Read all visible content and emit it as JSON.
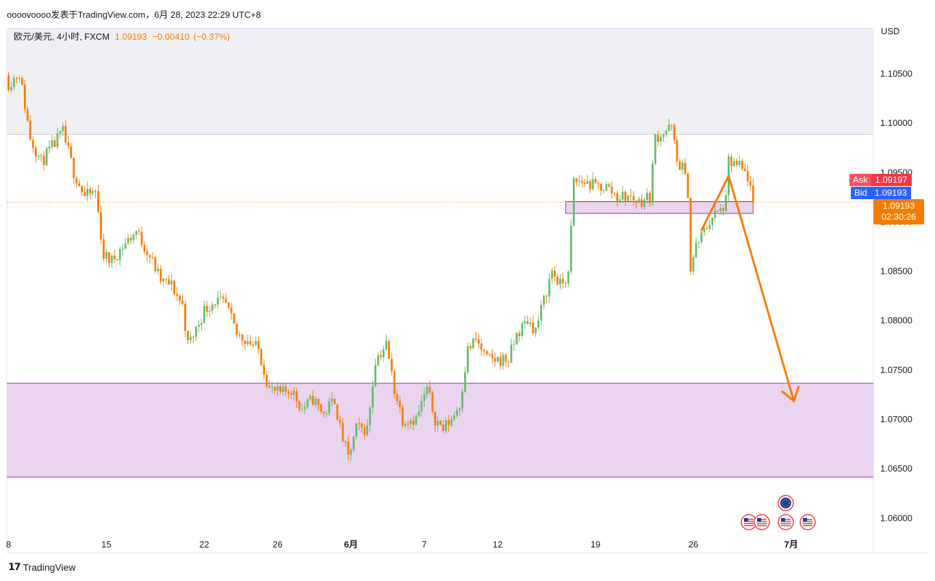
{
  "header": {
    "publisher_line": "oooovoooo发表于TradingView.com，6月 28, 2023 22:29 UTC+8"
  },
  "legend": {
    "symbol": "欧元/美元, 4小时, FXCM",
    "last": "1.09193",
    "change": "−0.00410",
    "change_pct": "(−0.37%)"
  },
  "price_panel": {
    "currency": "USD",
    "ask_label": "Ask",
    "ask_value": "1.09197",
    "bid_label": "Bid",
    "bid_value": "1.09193",
    "last_value": "1.09193",
    "countdown": "02:30:26"
  },
  "footer": {
    "brand": "TradingView"
  },
  "colors": {
    "up": "#66bb6a",
    "down": "#f57c00",
    "arrow": "#f57c00",
    "zone_fill": "#ead4f0",
    "zone_border": "#9c27b0",
    "top_shade": "#f0f0f4",
    "ask": "#f23645",
    "bid": "#2962ff"
  },
  "chart_data": {
    "type": "candlestick",
    "symbol": "EURUSD",
    "timeframe": "4h",
    "ylim": [
      1.0585,
      1.1095
    ],
    "y_ticks": [
      "1.10500",
      "1.10000",
      "1.09500",
      "1.09000",
      "1.08500",
      "1.08000",
      "1.07500",
      "1.07000",
      "1.06500",
      "1.06000"
    ],
    "y_tick_values": [
      1.105,
      1.1,
      1.095,
      1.09,
      1.085,
      1.08,
      1.075,
      1.07,
      1.065,
      1.06
    ],
    "x_ticks": [
      {
        "label": "8",
        "bold": false
      },
      {
        "label": "15",
        "bold": false
      },
      {
        "label": "22",
        "bold": false
      },
      {
        "label": "26",
        "bold": false
      },
      {
        "label": "6月",
        "bold": true
      },
      {
        "label": "7",
        "bold": false
      },
      {
        "label": "12",
        "bold": false
      },
      {
        "label": "19",
        "bold": false
      },
      {
        "label": "26",
        "bold": false
      },
      {
        "label": "7月",
        "bold": true
      }
    ],
    "x_tick_index": [
      0,
      36,
      72,
      99,
      126,
      153,
      180,
      216,
      252,
      288
    ],
    "bar_count": 300,
    "anchors": [
      [
        0,
        1.104
      ],
      [
        4,
        1.105
      ],
      [
        8,
        1.0985
      ],
      [
        12,
        1.096
      ],
      [
        16,
        1.0975
      ],
      [
        20,
        1.099
      ],
      [
        24,
        1.095
      ],
      [
        28,
        1.0925
      ],
      [
        32,
        1.093
      ],
      [
        35,
        1.0865
      ],
      [
        38,
        1.086
      ],
      [
        42,
        1.0875
      ],
      [
        47,
        1.089
      ],
      [
        52,
        1.0865
      ],
      [
        56,
        1.084
      ],
      [
        60,
        1.0835
      ],
      [
        64,
        1.0815
      ],
      [
        66,
        1.0775
      ],
      [
        68,
        1.0785
      ],
      [
        72,
        1.081
      ],
      [
        76,
        1.082
      ],
      [
        80,
        1.0815
      ],
      [
        84,
        1.0785
      ],
      [
        88,
        1.078
      ],
      [
        92,
        1.077
      ],
      [
        96,
        1.073
      ],
      [
        100,
        1.0725
      ],
      [
        104,
        1.073
      ],
      [
        108,
        1.071
      ],
      [
        112,
        1.072
      ],
      [
        116,
        1.0705
      ],
      [
        120,
        1.072
      ],
      [
        122,
        1.069
      ],
      [
        125,
        1.066
      ],
      [
        128,
        1.069
      ],
      [
        132,
        1.069
      ],
      [
        135,
        1.076
      ],
      [
        139,
        1.0775
      ],
      [
        142,
        1.073
      ],
      [
        145,
        1.07
      ],
      [
        150,
        1.07
      ],
      [
        154,
        1.073
      ],
      [
        157,
        1.07
      ],
      [
        160,
        1.069
      ],
      [
        163,
        1.07
      ],
      [
        166,
        1.0715
      ],
      [
        169,
        1.077
      ],
      [
        172,
        1.078
      ],
      [
        176,
        1.076
      ],
      [
        180,
        1.076
      ],
      [
        184,
        1.076
      ],
      [
        187,
        1.0785
      ],
      [
        191,
        1.08
      ],
      [
        194,
        1.079
      ],
      [
        197,
        1.082
      ],
      [
        200,
        1.085
      ],
      [
        203,
        1.0835
      ],
      [
        206,
        1.0845
      ],
      [
        208,
        1.094
      ],
      [
        212,
        1.094
      ],
      [
        216,
        1.0935
      ],
      [
        220,
        1.0935
      ],
      [
        224,
        1.0925
      ],
      [
        228,
        1.0925
      ],
      [
        232,
        1.092
      ],
      [
        236,
        1.0925
      ],
      [
        238,
        1.0985
      ],
      [
        241,
        1.099
      ],
      [
        244,
        1.0995
      ],
      [
        246,
        1.096
      ],
      [
        248,
        1.0955
      ],
      [
        250,
        1.093
      ],
      [
        251,
        1.085
      ],
      [
        253,
        1.0875
      ],
      [
        256,
        1.089
      ],
      [
        259,
        1.0905
      ],
      [
        262,
        1.091
      ],
      [
        264,
        1.092
      ],
      [
        265,
        1.096
      ],
      [
        269,
        1.0955
      ],
      [
        272,
        1.0945
      ],
      [
        274,
        1.0919
      ]
    ],
    "zones": [
      {
        "name": "lower-demand-zone",
        "top": 1.0736,
        "bottom": 1.0641
      },
      {
        "name": "mid-zone",
        "top": 1.092,
        "bottom": 1.0908,
        "from_index": 205,
        "to_index": 274
      },
      {
        "name": "upper-shade",
        "top": 1.1095,
        "bottom": 1.0988
      }
    ],
    "last_price": 1.09193,
    "arrow_path": [
      [
        255,
        1.0891
      ],
      [
        265,
        1.0946
      ],
      [
        289,
        1.0718
      ]
    ],
    "event_markers": {
      "eu": [
        1148
      ],
      "us": [
        1094,
        1113,
        1148,
        1180
      ]
    }
  }
}
